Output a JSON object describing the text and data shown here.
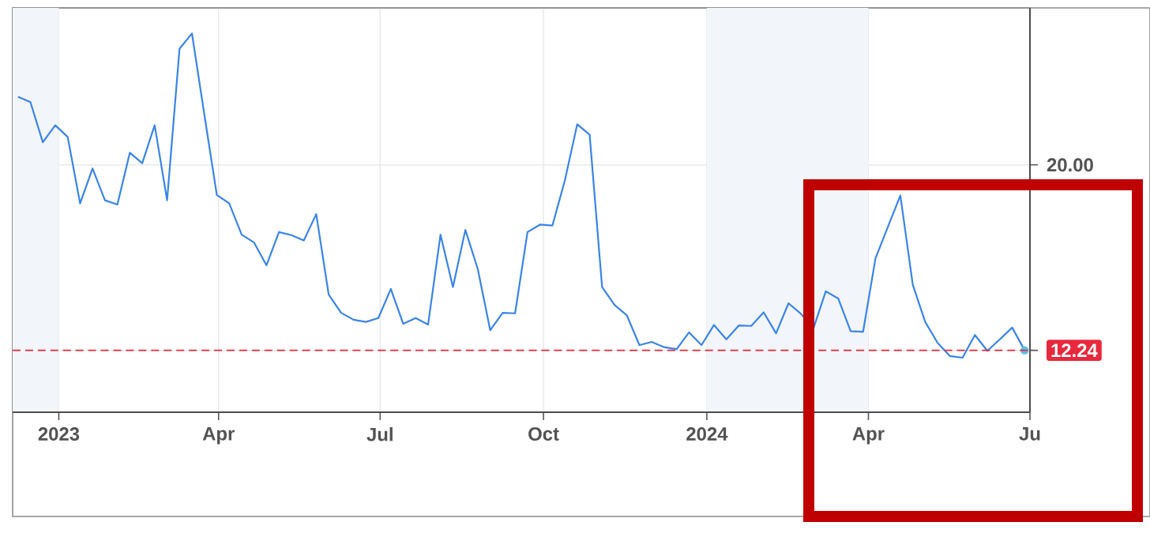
{
  "chart_data": {
    "type": "line",
    "color": "#3a84e8",
    "x": [
      "2022-12-09",
      "2022-12-16",
      "2022-12-23",
      "2022-12-30",
      "2023-01-06",
      "2023-01-13",
      "2023-01-20",
      "2023-01-27",
      "2023-02-03",
      "2023-02-10",
      "2023-02-17",
      "2023-02-24",
      "2023-03-03",
      "2023-03-10",
      "2023-03-17",
      "2023-03-24",
      "2023-03-31",
      "2023-04-07",
      "2023-04-14",
      "2023-04-21",
      "2023-04-28",
      "2023-05-05",
      "2023-05-12",
      "2023-05-19",
      "2023-05-26",
      "2023-06-02",
      "2023-06-09",
      "2023-06-16",
      "2023-06-23",
      "2023-06-30",
      "2023-07-07",
      "2023-07-14",
      "2023-07-21",
      "2023-07-28",
      "2023-08-04",
      "2023-08-11",
      "2023-08-18",
      "2023-08-25",
      "2023-09-01",
      "2023-09-08",
      "2023-09-15",
      "2023-09-22",
      "2023-09-29",
      "2023-10-06",
      "2023-10-13",
      "2023-10-20",
      "2023-10-27",
      "2023-11-03",
      "2023-11-10",
      "2023-11-17",
      "2023-11-24",
      "2023-12-01",
      "2023-12-08",
      "2023-12-15",
      "2023-12-22",
      "2023-12-29",
      "2024-01-05",
      "2024-01-12",
      "2024-01-19",
      "2024-01-26",
      "2024-02-02",
      "2024-02-09",
      "2024-02-16",
      "2024-02-23",
      "2024-03-01",
      "2024-03-08",
      "2024-03-15",
      "2024-03-22",
      "2024-03-29",
      "2024-04-05",
      "2024-04-12",
      "2024-04-19",
      "2024-04-26",
      "2024-05-03",
      "2024-05-10",
      "2024-05-17",
      "2024-05-24",
      "2024-05-31",
      "2024-06-07",
      "2024-06-14",
      "2024-06-21",
      "2024-06-28"
    ],
    "values": [
      22.85,
      22.63,
      20.95,
      21.66,
      21.17,
      18.39,
      19.85,
      18.52,
      18.34,
      20.51,
      20.07,
      21.66,
      18.52,
      24.86,
      25.5,
      22.1,
      18.74,
      18.39,
      17.08,
      16.75,
      15.8,
      17.19,
      17.06,
      16.84,
      17.94,
      14.58,
      13.81,
      13.52,
      13.43,
      13.59,
      14.81,
      13.35,
      13.59,
      13.32,
      17.08,
      14.89,
      17.28,
      15.64,
      13.08,
      13.81,
      13.79,
      17.19,
      17.5,
      17.46,
      19.34,
      21.7,
      21.26,
      14.89,
      14.14,
      13.7,
      12.46,
      12.59,
      12.37,
      12.29,
      12.99,
      12.46,
      13.3,
      12.7,
      13.28,
      13.26,
      13.83,
      12.95,
      14.21,
      13.77,
      13.15,
      14.71,
      14.41,
      13.04,
      13.02,
      16.09,
      17.41,
      18.72,
      14.98,
      13.43,
      12.55,
      12.0,
      11.93,
      12.88,
      12.22,
      12.7,
      13.19,
      12.24
    ],
    "xlim": [
      "2022-12-06",
      "2024-07-01"
    ],
    "xticks": [
      {
        "value": "2023-01-01",
        "label": "2023"
      },
      {
        "value": "2023-04-01",
        "label": "Apr"
      },
      {
        "value": "2023-07-01",
        "label": "Jul"
      },
      {
        "value": "2023-10-01",
        "label": "Oct"
      },
      {
        "value": "2024-01-01",
        "label": "2024"
      },
      {
        "value": "2024-04-01",
        "label": "Apr"
      },
      {
        "value": "2024-07-01",
        "label": "Ju"
      }
    ],
    "ylim": [
      9.65,
      26.57
    ],
    "yticks": [
      {
        "value": 12.24,
        "label": "12.24"
      },
      {
        "value": 20,
        "label": "20.00"
      }
    ],
    "grid": true,
    "ref_lines": [
      {
        "axis": "y",
        "value": 12.24,
        "color": "#e8283c",
        "line_style": "dashed"
      }
    ],
    "bands": [
      {
        "axis": "x",
        "from": "2022-12-06",
        "to": "2023-01-01",
        "color": "#f2f5f9"
      },
      {
        "axis": "x",
        "from": "2024-01-01",
        "to": "2024-04-01",
        "color": "#f2f5f9"
      }
    ]
  }
}
